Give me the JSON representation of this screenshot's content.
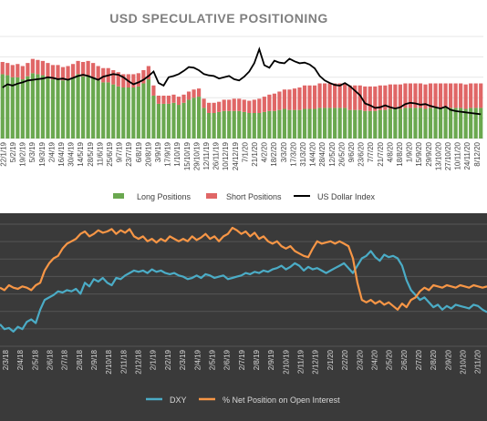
{
  "chart_data": [
    {
      "type": "bar",
      "title": "USD SPECULATIVE POSITIONING",
      "x_tick_labels": [
        "22/1/19",
        "5/2/19",
        "19/2/19",
        "5/3/19",
        "19/3/19",
        "2/4/19",
        "16/4/19",
        "30/4/19",
        "14/5/19",
        "28/5/19",
        "11/6/19",
        "25/6/19",
        "9/7/19",
        "23/7/19",
        "6/8/19",
        "20/8/19",
        "3/9/19",
        "17/9/19",
        "1/10/19",
        "15/10/19",
        "29/10/19",
        "12/11/19",
        "26/11/19",
        "10/12/19",
        "24/12/19",
        "7/1/20",
        "21/1/20",
        "4/2/20",
        "18/2/20",
        "3/3/20",
        "17/3/20",
        "31/3/20",
        "14/4/20",
        "28/4/20",
        "12/5/20",
        "26/5/20",
        "9/6/20",
        "23/6/20",
        "7/7/20",
        "21/7/20",
        "4/8/20",
        "18/8/20",
        "1/9/20",
        "15/9/20",
        "29/9/20",
        "13/10/20",
        "27/10/20",
        "10/11/20",
        "24/11/20",
        "8/12/20"
      ],
      "series": [
        {
          "name": "Long Positions",
          "color": "#6aa84f",
          "values": [
            63,
            62,
            60,
            60,
            58,
            61,
            64,
            63,
            62,
            60,
            58,
            59,
            57,
            58,
            60,
            63,
            61,
            62,
            60,
            57,
            55,
            55,
            53,
            51,
            50,
            50,
            50,
            51,
            54,
            58,
            42,
            34,
            34,
            34,
            35,
            33,
            35,
            38,
            40,
            41,
            30,
            25,
            25,
            26,
            27,
            27,
            27,
            27,
            26,
            25,
            25,
            25,
            26,
            27,
            27,
            28,
            29,
            28,
            28,
            28,
            29,
            29,
            29,
            30,
            30,
            30,
            30,
            30,
            30,
            28,
            28,
            28,
            27,
            27,
            27,
            28,
            28,
            29,
            29,
            29,
            30,
            30,
            30,
            30,
            29,
            30,
            30,
            30,
            30,
            30,
            30,
            30,
            29,
            30,
            30,
            30
          ]
        },
        {
          "name": "Short Positions",
          "color": "#e06666",
          "values": [
            12,
            12,
            12,
            13,
            13,
            13,
            14,
            14,
            14,
            14,
            14,
            13,
            13,
            13,
            13,
            13,
            14,
            14,
            14,
            14,
            14,
            14,
            14,
            14,
            13,
            13,
            13,
            13,
            13,
            13,
            10,
            8,
            8,
            8,
            8,
            8,
            8,
            8,
            8,
            8,
            9,
            10,
            10,
            10,
            11,
            11,
            12,
            12,
            12,
            12,
            13,
            14,
            15,
            16,
            17,
            18,
            19,
            20,
            21,
            22,
            23,
            23,
            23,
            24,
            24,
            24,
            24,
            24,
            24,
            24,
            24,
            24,
            24,
            24,
            24,
            24,
            24,
            24,
            24,
            24,
            24,
            24,
            24,
            24,
            24,
            24,
            24,
            24,
            24,
            24,
            24,
            24,
            24,
            24,
            24,
            24
          ]
        },
        {
          "name": "US Dollar Index",
          "color": "#000000",
          "values": [
            96,
            96.5,
            96.3,
            96.6,
            96.8,
            97.1,
            97.2,
            97.3,
            97.4,
            97.6,
            97.5,
            97.3,
            97.4,
            97.2,
            97.5,
            97.8,
            98,
            97.8,
            97.5,
            97.2,
            97.7,
            97.9,
            98.1,
            98,
            97.6,
            97,
            96.5,
            96.8,
            97.2,
            97.8,
            98.5,
            96.7,
            96.3,
            97.6,
            97.8,
            98.1,
            98.6,
            99.2,
            99.1,
            98.7,
            98.1,
            97.9,
            97.8,
            97.4,
            97.6,
            97.8,
            97.3,
            97.1,
            97.7,
            98.5,
            99.8,
            102,
            99.5,
            99.1,
            100.2,
            99.9,
            99.8,
            100.5,
            100.1,
            99.8,
            99.9,
            99.6,
            99,
            97.8,
            97.1,
            96.7,
            96.4,
            96.3,
            96.7,
            96.2,
            95.5,
            94.8,
            93.5,
            93.2,
            92.8,
            92.9,
            93.2,
            92.9,
            92.7,
            92.9,
            93.4,
            93.6,
            93.5,
            93.3,
            93.4,
            93.1,
            92.9,
            92.7,
            93,
            92.5,
            92.3,
            92.2,
            92.1,
            92,
            91.9,
            91.8
          ]
        }
      ],
      "legend_position": "bottom"
    },
    {
      "type": "line",
      "x_tick_labels": [
        "2/3/18",
        "2/4/18",
        "2/5/18",
        "2/6/18",
        "2/7/18",
        "2/8/18",
        "2/9/18",
        "2/10/18",
        "2/11/18",
        "2/12/18",
        "2/1/19",
        "2/2/19",
        "2/3/19",
        "2/4/19",
        "2/5/19",
        "2/6/19",
        "2/7/19",
        "2/8/19",
        "2/9/19",
        "2/10/19",
        "2/11/19",
        "2/12/19",
        "2/1/20",
        "2/2/20",
        "2/3/20",
        "2/4/20",
        "2/5/20",
        "2/6/20",
        "2/7/20",
        "2/8/20",
        "2/9/20",
        "2/10/20",
        "2/11/20"
      ],
      "series": [
        {
          "name": "DXY",
          "color": "#4bacc6",
          "values": [
            0.18,
            0.14,
            0.15,
            0.12,
            0.16,
            0.14,
            0.2,
            0.22,
            0.19,
            0.3,
            0.38,
            0.4,
            0.42,
            0.45,
            0.44,
            0.46,
            0.45,
            0.47,
            0.43,
            0.52,
            0.49,
            0.55,
            0.53,
            0.56,
            0.52,
            0.5,
            0.56,
            0.55,
            0.58,
            0.6,
            0.62,
            0.61,
            0.62,
            0.6,
            0.63,
            0.61,
            0.62,
            0.6,
            0.59,
            0.6,
            0.58,
            0.57,
            0.55,
            0.56,
            0.58,
            0.56,
            0.59,
            0.58,
            0.56,
            0.57,
            0.58,
            0.55,
            0.56,
            0.57,
            0.58,
            0.6,
            0.59,
            0.61,
            0.6,
            0.62,
            0.61,
            0.63,
            0.64,
            0.66,
            0.63,
            0.65,
            0.68,
            0.66,
            0.62,
            0.65,
            0.63,
            0.64,
            0.62,
            0.6,
            0.62,
            0.64,
            0.66,
            0.68,
            0.64,
            0.6,
            0.66,
            0.72,
            0.74,
            0.78,
            0.73,
            0.7,
            0.75,
            0.73,
            0.74,
            0.72,
            0.66,
            0.54,
            0.46,
            0.42,
            0.38,
            0.4,
            0.36,
            0.32,
            0.34,
            0.3,
            0.33,
            0.31,
            0.34,
            0.33,
            0.32,
            0.31,
            0.34,
            0.33,
            0.3,
            0.28
          ]
        },
        {
          "name": "% Net Position on Open Interest",
          "color": "#f79646",
          "values": [
            0.48,
            0.46,
            0.5,
            0.48,
            0.47,
            0.49,
            0.48,
            0.46,
            0.5,
            0.52,
            0.62,
            0.68,
            0.72,
            0.74,
            0.8,
            0.84,
            0.86,
            0.88,
            0.92,
            0.94,
            0.9,
            0.92,
            0.95,
            0.93,
            0.94,
            0.96,
            0.92,
            0.95,
            0.93,
            0.96,
            0.9,
            0.88,
            0.9,
            0.86,
            0.88,
            0.85,
            0.88,
            0.86,
            0.9,
            0.88,
            0.86,
            0.88,
            0.86,
            0.9,
            0.87,
            0.89,
            0.92,
            0.88,
            0.9,
            0.86,
            0.9,
            0.92,
            0.97,
            0.95,
            0.92,
            0.94,
            0.9,
            0.93,
            0.88,
            0.9,
            0.86,
            0.84,
            0.86,
            0.82,
            0.8,
            0.82,
            0.78,
            0.76,
            0.74,
            0.73,
            0.8,
            0.86,
            0.84,
            0.85,
            0.86,
            0.84,
            0.86,
            0.84,
            0.82,
            0.72,
            0.52,
            0.38,
            0.36,
            0.38,
            0.35,
            0.37,
            0.34,
            0.36,
            0.33,
            0.3,
            0.35,
            0.32,
            0.38,
            0.4,
            0.45,
            0.48,
            0.46,
            0.5,
            0.49,
            0.48,
            0.5,
            0.49,
            0.48,
            0.5,
            0.49,
            0.48,
            0.5,
            0.49,
            0.48,
            0.49
          ]
        }
      ],
      "legend_position": "bottom",
      "grid": true,
      "background": "#3a3a3a"
    }
  ]
}
